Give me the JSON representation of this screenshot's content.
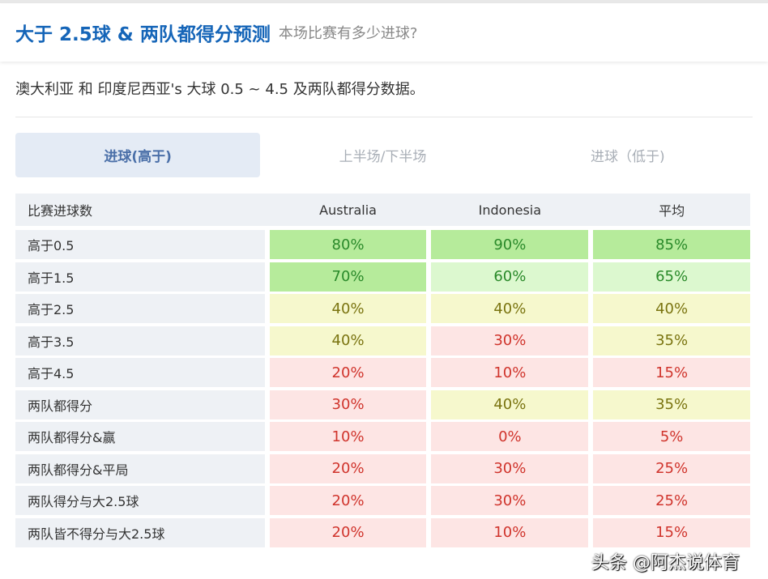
{
  "header": {
    "title": "大于 2.5球 & 两队都得分预测",
    "subtitle": "本场比赛有多少进球?"
  },
  "description": "澳大利亚 和 印度尼西亚's 大球 0.5 ~ 4.5 及两队都得分数据。",
  "tabs": [
    {
      "label": "进球(高于)",
      "active": true
    },
    {
      "label": "上半场/下半场"
    },
    {
      "label": "进球（低于)"
    }
  ],
  "table": {
    "columns": [
      "比赛进球数",
      "Australia",
      "Indonesia",
      "平均"
    ],
    "rows": [
      {
        "label": "高于0.5",
        "values": [
          "80%",
          "90%",
          "85%"
        ],
        "levels": [
          "g1",
          "g1",
          "g1"
        ]
      },
      {
        "label": "高于1.5",
        "values": [
          "70%",
          "60%",
          "65%"
        ],
        "levels": [
          "g1",
          "g2",
          "g2"
        ]
      },
      {
        "label": "高于2.5",
        "values": [
          "40%",
          "40%",
          "40%"
        ],
        "levels": [
          "y",
          "y",
          "y"
        ]
      },
      {
        "label": "高于3.5",
        "values": [
          "40%",
          "30%",
          "35%"
        ],
        "levels": [
          "y",
          "r",
          "y"
        ]
      },
      {
        "label": "高于4.5",
        "values": [
          "20%",
          "10%",
          "15%"
        ],
        "levels": [
          "r",
          "r",
          "r"
        ]
      },
      {
        "label": "两队都得分",
        "values": [
          "30%",
          "40%",
          "35%"
        ],
        "levels": [
          "r",
          "y",
          "y"
        ]
      },
      {
        "label": "两队都得分&赢",
        "values": [
          "10%",
          "0%",
          "5%"
        ],
        "levels": [
          "r",
          "r",
          "r"
        ]
      },
      {
        "label": "两队都得分&平局",
        "values": [
          "20%",
          "30%",
          "25%"
        ],
        "levels": [
          "r",
          "r",
          "r"
        ]
      },
      {
        "label": "两队得分与大2.5球",
        "values": [
          "20%",
          "30%",
          "25%"
        ],
        "levels": [
          "r",
          "r",
          "r"
        ]
      },
      {
        "label": "两队皆不得分与大2.5球",
        "values": [
          "20%",
          "10%",
          "15%"
        ],
        "levels": [
          "r",
          "r",
          "r"
        ]
      }
    ]
  },
  "colors": {
    "high": "#b6eb9b",
    "mid_high": "#dcf8cf",
    "mid": "#f6f8cd",
    "low": "#fde5e4",
    "title": "#1565b8"
  },
  "watermark": "头条 @阿杰说体育"
}
